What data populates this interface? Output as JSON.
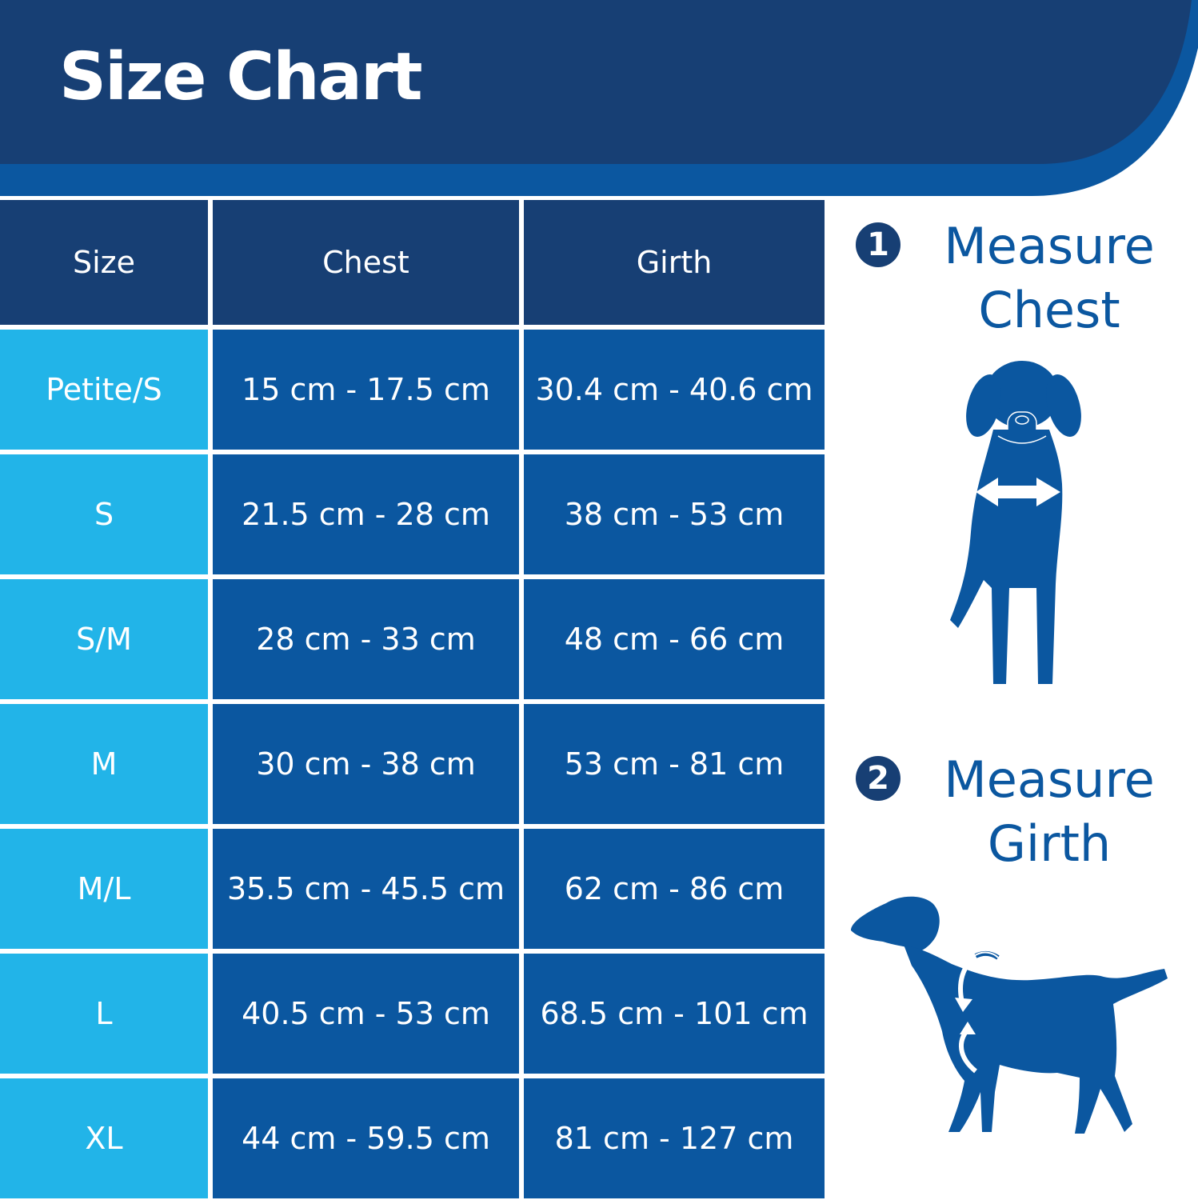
{
  "header": {
    "title": "Size Chart"
  },
  "table": {
    "headers": [
      "Size",
      "Chest",
      "Girth"
    ],
    "rows": [
      {
        "size": "Petite/S",
        "chest": "15 cm - 17.5 cm",
        "girth": "30.4 cm - 40.6 cm"
      },
      {
        "size": "S",
        "chest": "21.5 cm - 28 cm",
        "girth": "38 cm - 53 cm"
      },
      {
        "size": "S/M",
        "chest": "28 cm - 33 cm",
        "girth": "48 cm - 66 cm"
      },
      {
        "size": "M",
        "chest": "30 cm - 38 cm",
        "girth": "53 cm - 81 cm"
      },
      {
        "size": "M/L",
        "chest": "35.5 cm - 45.5 cm",
        "girth": "62 cm - 86 cm"
      },
      {
        "size": "L",
        "chest": "40.5 cm - 53 cm",
        "girth": "68.5 cm - 101 cm"
      },
      {
        "size": "XL",
        "chest": "44 cm - 59.5 cm",
        "girth": "81 cm - 127 cm"
      }
    ]
  },
  "steps": [
    {
      "number": "1",
      "label_line1": "Measure",
      "label_line2": "Chest",
      "icon": "dog-front-chest-icon"
    },
    {
      "number": "2",
      "label_line1": "Measure",
      "label_line2": "Girth",
      "icon": "dog-side-girth-icon"
    }
  ],
  "colors": {
    "header_navy": "#173f74",
    "header_accent": "#0b57a0",
    "size_column": "#22b4e8",
    "value_columns": "#0b57a0",
    "text_blue": "#0b57a0"
  }
}
